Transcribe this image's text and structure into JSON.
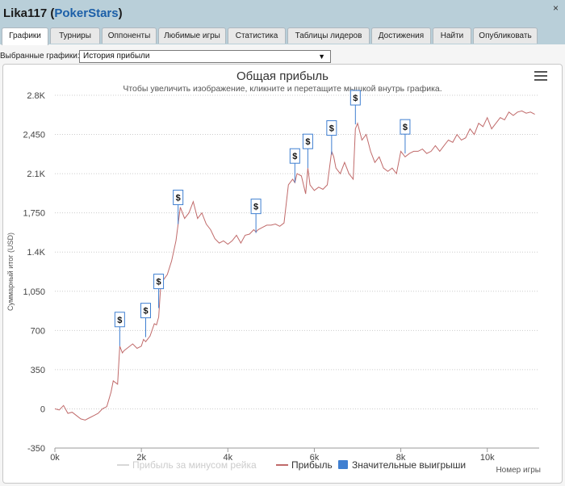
{
  "window": {
    "player": "Lika117",
    "site": "PokerStars",
    "close_glyph": "×"
  },
  "tabs": [
    "Графики",
    "Турниры",
    "Оппоненты",
    "Любимые игры",
    "Статистика",
    "Таблицы лидеров",
    "Достижения",
    "Найти",
    "Опубликовать"
  ],
  "active_tab": 0,
  "selector": {
    "label": "Выбранные графики:",
    "value": "История прибыли"
  },
  "menu_icon": "hamburger-menu-icon",
  "chart_data": {
    "type": "line",
    "title": "Общая прибыль",
    "subtitle": "Чтобы увеличить изображение, кликните и перетащите мышкой внутрь графика.",
    "ylabel": "Суммарный итог (USD)",
    "xlabel": "Номер игры",
    "xlim": [
      0,
      11200
    ],
    "ylim": [
      -350,
      2800
    ],
    "x_ticks": [
      {
        "v": 0,
        "label": "0k"
      },
      {
        "v": 2000,
        "label": "2k"
      },
      {
        "v": 4000,
        "label": "4k"
      },
      {
        "v": 6000,
        "label": "6k"
      },
      {
        "v": 8000,
        "label": "8k"
      },
      {
        "v": 10000,
        "label": "10k"
      }
    ],
    "y_ticks": [
      {
        "v": -350,
        "label": "-350"
      },
      {
        "v": 0,
        "label": "0"
      },
      {
        "v": 350,
        "label": "350"
      },
      {
        "v": 700,
        "label": "700"
      },
      {
        "v": 1050,
        "label": "1,050"
      },
      {
        "v": 1400,
        "label": "1.4K"
      },
      {
        "v": 1750,
        "label": "1,750"
      },
      {
        "v": 2100,
        "label": "2.1K"
      },
      {
        "v": 2450,
        "label": "2,450"
      },
      {
        "v": 2800,
        "label": "2.8K"
      }
    ],
    "grid": true,
    "legend_position": "bottom",
    "legend": [
      {
        "name": "Прибыль за минусом рейка",
        "color": "#d8d8d8",
        "kind": "line"
      },
      {
        "name": "Прибыль",
        "color": "#c06a6a",
        "kind": "line"
      },
      {
        "name": "Значительные выигрыши",
        "color": "#3f7fd1",
        "kind": "box"
      }
    ],
    "series": [
      {
        "name": "Прибыль",
        "color": "#c06a6a",
        "x": [
          0,
          100,
          200,
          300,
          400,
          500,
          600,
          700,
          800,
          900,
          1000,
          1100,
          1200,
          1300,
          1350,
          1450,
          1500,
          1560,
          1600,
          1700,
          1800,
          1900,
          2000,
          2050,
          2100,
          2200,
          2300,
          2350,
          2400,
          2450,
          2600,
          2700,
          2800,
          2850,
          2900,
          3000,
          3100,
          3200,
          3300,
          3400,
          3500,
          3600,
          3700,
          3800,
          3900,
          4000,
          4100,
          4200,
          4300,
          4400,
          4500,
          4600,
          4650,
          4700,
          4800,
          4900,
          5000,
          5100,
          5200,
          5300,
          5400,
          5500,
          5550,
          5600,
          5700,
          5800,
          5850,
          5900,
          6000,
          6100,
          6200,
          6300,
          6400,
          6450,
          6500,
          6600,
          6700,
          6800,
          6900,
          6950,
          7000,
          7100,
          7200,
          7300,
          7400,
          7500,
          7600,
          7700,
          7800,
          7900,
          8000,
          8100,
          8200,
          8300,
          8400,
          8500,
          8600,
          8700,
          8800,
          8900,
          9000,
          9100,
          9200,
          9300,
          9400,
          9500,
          9600,
          9700,
          9800,
          9900,
          10000,
          10100,
          10200,
          10300,
          10400,
          10500,
          10600,
          10700,
          10800,
          10900,
          11000,
          11100
        ],
        "values": [
          0,
          -10,
          30,
          -40,
          -30,
          -60,
          -90,
          -100,
          -80,
          -60,
          -40,
          0,
          20,
          150,
          250,
          220,
          560,
          500,
          520,
          550,
          580,
          540,
          560,
          620,
          600,
          650,
          760,
          750,
          820,
          1120,
          1200,
          1320,
          1500,
          1650,
          1800,
          1700,
          1750,
          1850,
          1700,
          1750,
          1650,
          1600,
          1520,
          1480,
          1500,
          1470,
          1500,
          1550,
          1480,
          1550,
          1560,
          1600,
          1580,
          1600,
          1620,
          1640,
          1640,
          1650,
          1630,
          1660,
          2000,
          2050,
          2020,
          2100,
          2080,
          1920,
          2150,
          2000,
          1950,
          1980,
          1960,
          2000,
          2300,
          2250,
          2150,
          2100,
          2200,
          2100,
          2050,
          2500,
          2550,
          2400,
          2450,
          2300,
          2200,
          2250,
          2150,
          2120,
          2150,
          2100,
          2300,
          2250,
          2280,
          2300,
          2300,
          2320,
          2280,
          2300,
          2350,
          2300,
          2350,
          2400,
          2380,
          2450,
          2400,
          2420,
          2500,
          2450,
          2550,
          2520,
          2600,
          2500,
          2550,
          2600,
          2580,
          2650,
          2620,
          2650,
          2660,
          2640,
          2650,
          2630
        ]
      }
    ],
    "big_wins": [
      {
        "x": 1500,
        "y": 560,
        "label": "$"
      },
      {
        "x": 2100,
        "y": 640,
        "label": "$"
      },
      {
        "x": 2400,
        "y": 900,
        "label": "$"
      },
      {
        "x": 2850,
        "y": 1650,
        "label": "$"
      },
      {
        "x": 4650,
        "y": 1570,
        "label": "$"
      },
      {
        "x": 5550,
        "y": 2020,
        "label": "$"
      },
      {
        "x": 5850,
        "y": 2150,
        "label": "$"
      },
      {
        "x": 6400,
        "y": 2270,
        "label": "$"
      },
      {
        "x": 6950,
        "y": 2540,
        "label": "$"
      },
      {
        "x": 8100,
        "y": 2280,
        "label": "$"
      }
    ]
  }
}
